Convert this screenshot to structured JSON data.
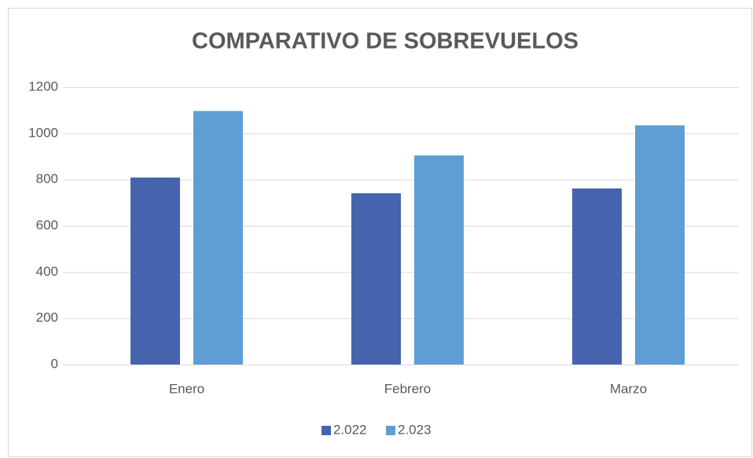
{
  "chart_data": {
    "type": "bar",
    "title": "COMPARATIVO DE SOBREVUELOS",
    "categories": [
      "Enero",
      "Febrero",
      "Marzo"
    ],
    "series": [
      {
        "name": "2.022",
        "color": "#4664ae",
        "values": [
          809,
          741,
          762
        ]
      },
      {
        "name": "2.023",
        "color": "#5f9ed4",
        "values": [
          1097,
          905,
          1035
        ]
      }
    ],
    "ylim": [
      0,
      1200
    ],
    "yticks": [
      0,
      200,
      400,
      600,
      800,
      1000,
      1200
    ],
    "grid": true,
    "legend": "bottom"
  }
}
